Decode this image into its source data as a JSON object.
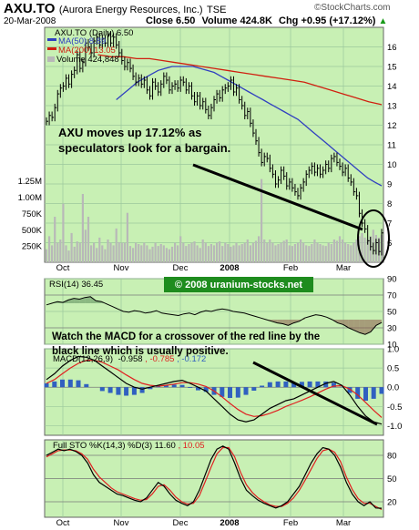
{
  "header": {
    "symbol": "AXU.TO",
    "company": "(Aurora Energy Resources, Inc.)",
    "exchange": "TSE",
    "source": "©StockCharts.com",
    "date": "20-Mar-2008",
    "close": "Close 6.50",
    "volume": "Volume 424.8K",
    "change": "Chg +0.95 (+17.12%)",
    "change_arrow": "▲"
  },
  "legend": {
    "main": "AXU.TO (Daily) 6.50",
    "ma50": "MA(50) 8.89",
    "ma200": "MA(200) 13.05",
    "volume": "Volume 424,848",
    "rsi": "RSI(14) 36.45",
    "macd_prefix": "MACD(12,26,9)",
    "macd_value": "-0.958",
    "macd_signal": ", -0.785",
    "macd_hist": ", -0.172",
    "sto_prefix": "Full STO %K(14,3) %D(3) 11.60",
    "sto_d": ", 10.05"
  },
  "annotations": {
    "price_note_1": "AXU moves up 17.12% as",
    "price_note_2": "speculators look for a bargain.",
    "watermark": "© 2008 uranium-stocks.net",
    "macd_note_1": "Watch the MACD for a crossover of the red line by the",
    "macd_note_2": "black line which is usually positive."
  },
  "colors": {
    "panel_bg": "#c8f0b4",
    "price": "#000000",
    "ma50": "#3040c0",
    "ma200": "#d02010",
    "volume_bar": "#b8b8b8",
    "rsi_line": "#000000",
    "macd_line": "#000000",
    "signal_line": "#e02020",
    "hist": "#3060c0",
    "sto_k": "#000000",
    "sto_d": "#e02020"
  },
  "chart_data": [
    {
      "type": "line",
      "title": "AXU.TO (Daily) 6.50",
      "panel": "price",
      "x_labels": [
        "Oct",
        "Nov",
        "Dec",
        "2008",
        "Feb",
        "Mar"
      ],
      "ylim": [
        5,
        17
      ],
      "y_ticks": [
        "16",
        "15",
        "14",
        "13",
        "12",
        "11",
        "10",
        "9",
        "8",
        "7",
        "6"
      ],
      "volume_ticks": [
        "1.25M",
        "1.00M",
        "750K",
        "500K",
        "250K"
      ],
      "volume_max": 1400000,
      "series": [
        {
          "name": "AXU.TO",
          "values": [
            12.2,
            12.5,
            12.4,
            12.9,
            13.6,
            13.9,
            14.0,
            14.4,
            14.1,
            14.6,
            14.8,
            15.6,
            14.9,
            15.2,
            16.2,
            16.0,
            15.7,
            16.3,
            16.5,
            16.1,
            16.4,
            16.2,
            16.6,
            16.2,
            16.5,
            16.1,
            15.7,
            15.3,
            15.0,
            15.2,
            14.9,
            14.5,
            14.2,
            14.4,
            14.1,
            14.3,
            13.8,
            13.5,
            14.2,
            14.0,
            13.7,
            14.1,
            14.5,
            14.3,
            13.8,
            14.0,
            14.1,
            13.9,
            14.3,
            14.2,
            13.8,
            14.0,
            13.5,
            13.2,
            13.5,
            13.0,
            13.2,
            12.8,
            12.5,
            12.9,
            13.3,
            13.6,
            13.4,
            13.8,
            13.9,
            14.0,
            14.3,
            13.7,
            13.9,
            13.3,
            13.0,
            12.5,
            12.7,
            12.1,
            11.6,
            11.2,
            10.6,
            10.1,
            10.4,
            10.3,
            9.8,
            9.5,
            9.0,
            9.2,
            9.7,
            9.4,
            8.9,
            9.1,
            8.8,
            8.6,
            8.4,
            8.8,
            9.1,
            9.5,
            9.7,
            9.9,
            9.6,
            9.8,
            9.5,
            9.7,
            10.0,
            9.8,
            10.3,
            10.4,
            10.1,
            9.9,
            9.6,
            9.8,
            9.3,
            9.1,
            8.6,
            8.4,
            7.5,
            7.0,
            6.7,
            6.1,
            5.8,
            5.6,
            6.0,
            5.55,
            6.5
          ]
        },
        {
          "name": "MA(50)",
          "values": [
            null,
            null,
            null,
            null,
            null,
            null,
            null,
            null,
            null,
            null,
            13.3,
            13.6,
            13.9,
            14.2,
            14.4,
            14.6,
            14.8,
            14.9,
            15.0,
            15.0,
            15.0,
            15.0,
            14.9,
            14.8,
            14.7,
            14.5,
            14.3,
            14.1,
            13.9,
            13.7,
            13.5,
            13.3,
            13.1,
            12.9,
            12.7,
            12.5,
            12.3,
            12.0,
            11.7,
            11.4,
            11.1,
            10.8,
            10.5,
            10.2,
            9.9,
            9.6,
            9.3,
            9.1,
            8.9
          ]
        },
        {
          "name": "MA(200)",
          "values": [
            null,
            null,
            null,
            null,
            15.6,
            15.5,
            15.5,
            15.4,
            15.4,
            15.3,
            15.2,
            15.1,
            15.0,
            14.9,
            14.8,
            14.7,
            14.6,
            14.5,
            14.4,
            14.3,
            14.2,
            14.0,
            13.8,
            13.6,
            13.4,
            13.2,
            13.05
          ]
        },
        {
          "name": "Volume",
          "values": [
            200000,
            400000,
            260000,
            700000,
            300000,
            350000,
            900000,
            260000,
            180000,
            450000,
            240000,
            320000,
            300000,
            1050000,
            500000,
            700000,
            260000,
            300000,
            220000,
            380000,
            260000,
            200000,
            350000,
            300000,
            260000,
            520000,
            310000,
            300000,
            300000,
            760000,
            250000,
            220000,
            300000,
            280000,
            260000,
            300000,
            260000,
            200000,
            240000,
            300000,
            250000,
            280000,
            260000,
            220000,
            200000,
            240000,
            300000,
            260000,
            400000,
            300000,
            250000,
            280000,
            300000,
            320000,
            260000,
            220000,
            350000,
            300000,
            250000,
            280000,
            260000,
            300000,
            320000,
            250000,
            300000,
            280000,
            240000,
            260000,
            300000,
            260000,
            280000,
            300000,
            350000,
            260000,
            300000,
            330000,
            400000,
            1280000,
            350000,
            300000,
            350000,
            300000,
            260000,
            280000,
            300000,
            330000,
            350000,
            260000,
            250000,
            280000,
            300000,
            350000,
            300000,
            260000,
            250000,
            280000,
            350000,
            300000,
            280000,
            260000,
            250000,
            300000,
            280000,
            350000,
            330000,
            400000,
            350000,
            300000,
            280000,
            260000,
            300000,
            350000,
            400000,
            450000,
            380000,
            350000,
            400000,
            500000,
            420000,
            380000,
            424848
          ]
        }
      ]
    },
    {
      "type": "line",
      "title": "RSI(14) 36.45",
      "panel": "rsi",
      "ylim": [
        10,
        90
      ],
      "y_ticks": [
        "90",
        "70",
        "50",
        "30",
        "10"
      ],
      "series": [
        {
          "name": "RSI(14)",
          "values": [
            58,
            60,
            62,
            61,
            64,
            66,
            65,
            67,
            68,
            63,
            62,
            59,
            56,
            53,
            50,
            49,
            51,
            50,
            48,
            49,
            51,
            48,
            47,
            46,
            45,
            47,
            48,
            46,
            49,
            51,
            50,
            52,
            53,
            52,
            50,
            49,
            48,
            46,
            44,
            42,
            40,
            38,
            36,
            35,
            33,
            36,
            38,
            42,
            44,
            46,
            45,
            43,
            40,
            36,
            34,
            30,
            27,
            24,
            22,
            25,
            33,
            36.45
          ]
        }
      ]
    },
    {
      "type": "line",
      "title": "MACD(12,26,9) -0.958, -0.785, -0.172",
      "panel": "macd",
      "ylim": [
        -1.25,
        1.0
      ],
      "y_ticks": [
        "1.0",
        "0.5",
        "0.0",
        "-0.5",
        "-1.0"
      ],
      "series": [
        {
          "name": "MACD",
          "values": [
            0.2,
            0.35,
            0.55,
            0.7,
            0.8,
            0.78,
            0.7,
            0.55,
            0.4,
            0.25,
            0.1,
            0.0,
            -0.05,
            0.0,
            0.05,
            0.1,
            0.15,
            0.18,
            0.1,
            0.0,
            -0.1,
            -0.3,
            -0.5,
            -0.7,
            -0.85,
            -0.9,
            -0.85,
            -0.7,
            -0.55,
            -0.45,
            -0.35,
            -0.3,
            -0.2,
            -0.1,
            0.0,
            0.1,
            0.15,
            0.05,
            -0.2,
            -0.5,
            -0.75,
            -0.9,
            -0.958
          ]
        },
        {
          "name": "Signal",
          "values": [
            0.1,
            0.2,
            0.35,
            0.5,
            0.62,
            0.7,
            0.7,
            0.65,
            0.55,
            0.45,
            0.32,
            0.2,
            0.1,
            0.05,
            0.03,
            0.05,
            0.08,
            0.12,
            0.12,
            0.08,
            0.02,
            -0.1,
            -0.25,
            -0.42,
            -0.58,
            -0.7,
            -0.76,
            -0.74,
            -0.68,
            -0.6,
            -0.5,
            -0.42,
            -0.34,
            -0.25,
            -0.15,
            -0.05,
            0.03,
            0.04,
            -0.05,
            -0.2,
            -0.4,
            -0.6,
            -0.785
          ]
        },
        {
          "name": "Histogram",
          "values": [
            0.1,
            0.15,
            0.2,
            0.2,
            0.18,
            0.08,
            0.0,
            -0.1,
            -0.15,
            -0.2,
            -0.22,
            -0.2,
            -0.15,
            -0.05,
            0.02,
            0.05,
            0.07,
            0.06,
            -0.02,
            -0.08,
            -0.12,
            -0.2,
            -0.25,
            -0.28,
            -0.27,
            -0.2,
            -0.09,
            0.04,
            0.13,
            0.15,
            0.15,
            0.12,
            0.14,
            0.15,
            0.15,
            0.15,
            0.12,
            0.01,
            -0.15,
            -0.3,
            -0.35,
            -0.3,
            -0.172
          ]
        }
      ]
    },
    {
      "type": "line",
      "title": "Full STO %K(14,3) %D(3) 11.60, 10.05",
      "panel": "sto",
      "x_labels": [
        "Oct",
        "Nov",
        "Dec",
        "2008",
        "Feb",
        "Mar"
      ],
      "ylim": [
        0,
        100
      ],
      "y_ticks": [
        "80",
        "50",
        "20"
      ],
      "series": [
        {
          "name": "%K",
          "values": [
            80,
            84,
            88,
            86,
            88,
            85,
            80,
            70,
            55,
            45,
            40,
            35,
            30,
            28,
            25,
            22,
            20,
            25,
            35,
            45,
            40,
            30,
            22,
            18,
            15,
            20,
            35,
            55,
            75,
            88,
            92,
            88,
            70,
            50,
            35,
            28,
            22,
            18,
            15,
            12,
            15,
            20,
            30,
            40,
            55,
            70,
            82,
            90,
            88,
            80,
            65,
            45,
            30,
            20,
            15,
            20,
            12,
            11.6
          ]
        },
        {
          "name": "%D",
          "values": [
            78,
            82,
            86,
            87,
            87,
            86,
            82,
            75,
            62,
            52,
            45,
            38,
            33,
            30,
            27,
            24,
            22,
            23,
            30,
            40,
            42,
            35,
            26,
            20,
            17,
            18,
            28,
            46,
            65,
            82,
            90,
            90,
            78,
            58,
            42,
            32,
            25,
            20,
            16,
            14,
            14,
            18,
            25,
            35,
            48,
            62,
            76,
            86,
            88,
            84,
            72,
            52,
            36,
            24,
            18,
            18,
            14,
            10.05
          ]
        }
      ]
    }
  ]
}
